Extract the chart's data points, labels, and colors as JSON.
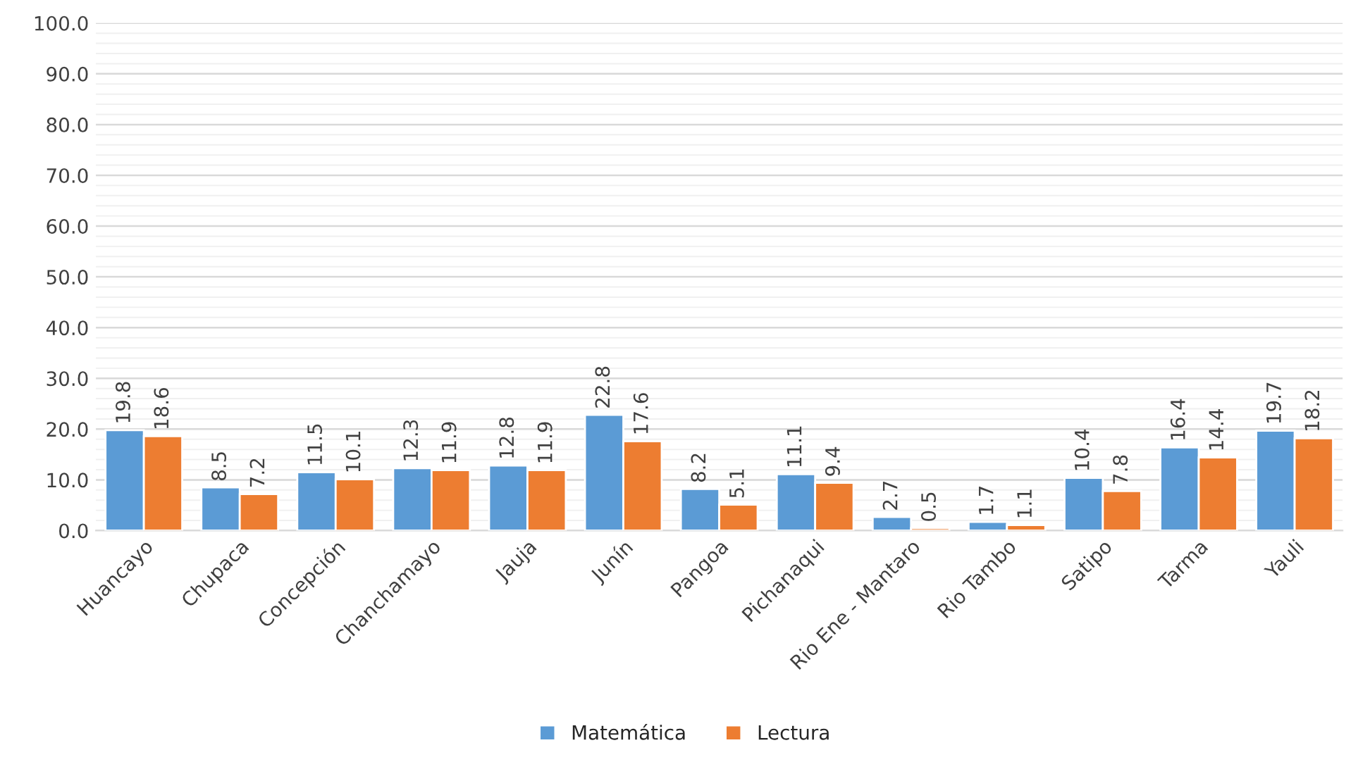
{
  "chart_data": {
    "type": "bar",
    "categories": [
      "Huancayo",
      "Chupaca",
      "Concepción",
      "Chanchamayo",
      "Jauja",
      "Junín",
      "Pangoa",
      "Pichanaqui",
      "Rio Ene - Mantaro",
      "Rio Tambo",
      "Satipo",
      "Tarma",
      "Yauli"
    ],
    "series": [
      {
        "name": "Matemática",
        "color": "#5b9bd5",
        "values": [
          19.8,
          8.5,
          11.5,
          12.3,
          12.8,
          22.8,
          8.2,
          11.1,
          2.7,
          1.7,
          10.4,
          16.4,
          19.7
        ]
      },
      {
        "name": "Lectura",
        "color": "#ed7d31",
        "values": [
          18.6,
          7.2,
          10.1,
          11.9,
          11.9,
          17.6,
          5.1,
          9.4,
          0.5,
          1.1,
          7.8,
          14.4,
          18.2
        ]
      }
    ],
    "ylim": [
      0,
      100
    ],
    "yticks": [
      {
        "value": 0,
        "label": "0.0"
      },
      {
        "value": 10,
        "label": "10.0"
      },
      {
        "value": 20,
        "label": "20.0"
      },
      {
        "value": 30,
        "label": "30.0"
      },
      {
        "value": 40,
        "label": "40.0"
      },
      {
        "value": 50,
        "label": "50.0"
      },
      {
        "value": 60,
        "label": "60.0"
      },
      {
        "value": 70,
        "label": "70.0"
      },
      {
        "value": 80,
        "label": "80.0"
      },
      {
        "value": 90,
        "label": "90.0"
      },
      {
        "value": 100,
        "label": "100.0"
      }
    ],
    "grid": "y",
    "legend": "bottom",
    "data_labels": true
  }
}
